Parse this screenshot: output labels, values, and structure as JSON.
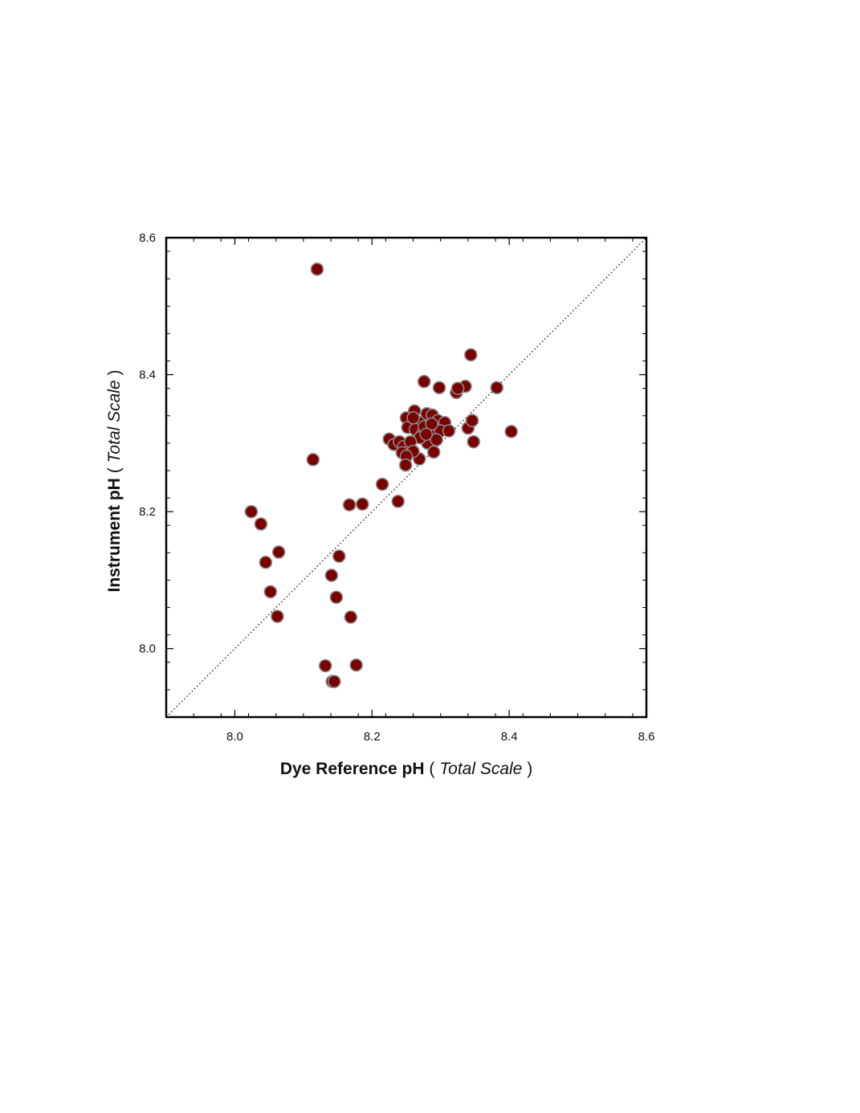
{
  "colors": {
    "point_fill": "#7a0000",
    "point_stroke": "#8a8a8a",
    "axis": "#000000",
    "reference_line": "#000000"
  },
  "chart_data": {
    "type": "scatter",
    "title": "",
    "xlabel": {
      "bold": "Dye Reference pH",
      "open": " ( ",
      "italic": "Total Scale",
      "close": " )"
    },
    "ylabel": {
      "bold": "Instrument pH",
      "open": " ( ",
      "italic": "Total Scale",
      "close": " )"
    },
    "xlim": [
      7.9,
      8.6
    ],
    "ylim": [
      7.9,
      8.6
    ],
    "xticks": [
      8.0,
      8.2,
      8.4,
      8.6
    ],
    "yticks": [
      8.0,
      8.2,
      8.4,
      8.6
    ],
    "xtick_labels": [
      "8.0",
      "8.2",
      "8.4",
      "8.6"
    ],
    "ytick_labels": [
      "8.0",
      "8.2",
      "8.4",
      "8.6"
    ],
    "minor_tick_step": 0.04,
    "grid": false,
    "reference_line": {
      "style": "dotted",
      "from": [
        7.9,
        7.9
      ],
      "to": [
        8.6,
        8.6
      ]
    },
    "points": [
      [
        8.12,
        8.554
      ],
      [
        8.344,
        8.429
      ],
      [
        8.276,
        8.39
      ],
      [
        8.298,
        8.381
      ],
      [
        8.336,
        8.383
      ],
      [
        8.323,
        8.374
      ],
      [
        8.325,
        8.38
      ],
      [
        8.382,
        8.381
      ],
      [
        8.34,
        8.322
      ],
      [
        8.346,
        8.333
      ],
      [
        8.348,
        8.302
      ],
      [
        8.403,
        8.317
      ],
      [
        8.25,
        8.337
      ],
      [
        8.262,
        8.347
      ],
      [
        8.27,
        8.33
      ],
      [
        8.28,
        8.343
      ],
      [
        8.288,
        8.341
      ],
      [
        8.296,
        8.333
      ],
      [
        8.306,
        8.33
      ],
      [
        8.252,
        8.323
      ],
      [
        8.263,
        8.32
      ],
      [
        8.274,
        8.314
      ],
      [
        8.284,
        8.317
      ],
      [
        8.292,
        8.312
      ],
      [
        8.3,
        8.318
      ],
      [
        8.312,
        8.318
      ],
      [
        8.281,
        8.3
      ],
      [
        8.294,
        8.305
      ],
      [
        8.276,
        8.324
      ],
      [
        8.287,
        8.328
      ],
      [
        8.26,
        8.337
      ],
      [
        8.27,
        8.308
      ],
      [
        8.279,
        8.313
      ],
      [
        8.29,
        8.287
      ],
      [
        8.269,
        8.277
      ],
      [
        8.225,
        8.306
      ],
      [
        8.232,
        8.298
      ],
      [
        8.24,
        8.302
      ],
      [
        8.246,
        8.295
      ],
      [
        8.256,
        8.302
      ],
      [
        8.26,
        8.288
      ],
      [
        8.244,
        8.286
      ],
      [
        8.25,
        8.281
      ],
      [
        8.249,
        8.268
      ],
      [
        8.215,
        8.24
      ],
      [
        8.238,
        8.215
      ],
      [
        8.114,
        8.276
      ],
      [
        8.186,
        8.211
      ],
      [
        8.167,
        8.21
      ],
      [
        8.024,
        8.2
      ],
      [
        8.038,
        8.182
      ],
      [
        8.064,
        8.141
      ],
      [
        8.045,
        8.126
      ],
      [
        8.052,
        8.083
      ],
      [
        8.062,
        8.047
      ],
      [
        8.152,
        8.135
      ],
      [
        8.141,
        8.107
      ],
      [
        8.148,
        8.075
      ],
      [
        8.169,
        8.046
      ],
      [
        8.132,
        7.975
      ],
      [
        8.177,
        7.976
      ],
      [
        8.142,
        7.952
      ],
      [
        8.145,
        7.952
      ]
    ]
  }
}
